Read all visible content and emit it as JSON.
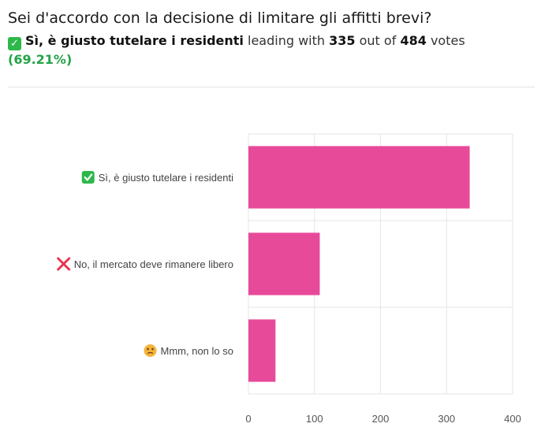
{
  "header": {
    "question": "Sei d'accordo con la decisione di limitare gli affitti brevi?",
    "leader_label": "Sì, è giusto tutelare i residenti",
    "leading_text": "leading with",
    "leader_votes": "335",
    "out_of_text": "out of",
    "total_votes": "484",
    "votes_text": "votes",
    "percent": "(69.21%)"
  },
  "colors": {
    "bar": "#e84a9a",
    "grid": "#e6e6e6",
    "check": "#2eb84a",
    "cross": "#e8344e",
    "emoji": "#f4b43a",
    "percent": "#22a447"
  },
  "chart_data": {
    "type": "bar",
    "orientation": "horizontal",
    "categories": [
      "Sì, è giusto tutelare i residenti",
      "No, il mercato deve rimanere libero",
      "Mmm, non lo so"
    ],
    "category_icons": [
      "check-icon",
      "cross-icon",
      "thinking-emoji-icon"
    ],
    "values": [
      335,
      108,
      41
    ],
    "xlim": [
      0,
      400
    ],
    "xticks": [
      0,
      100,
      200,
      300,
      400
    ],
    "grid": true,
    "title": "",
    "xlabel": "",
    "ylabel": ""
  }
}
